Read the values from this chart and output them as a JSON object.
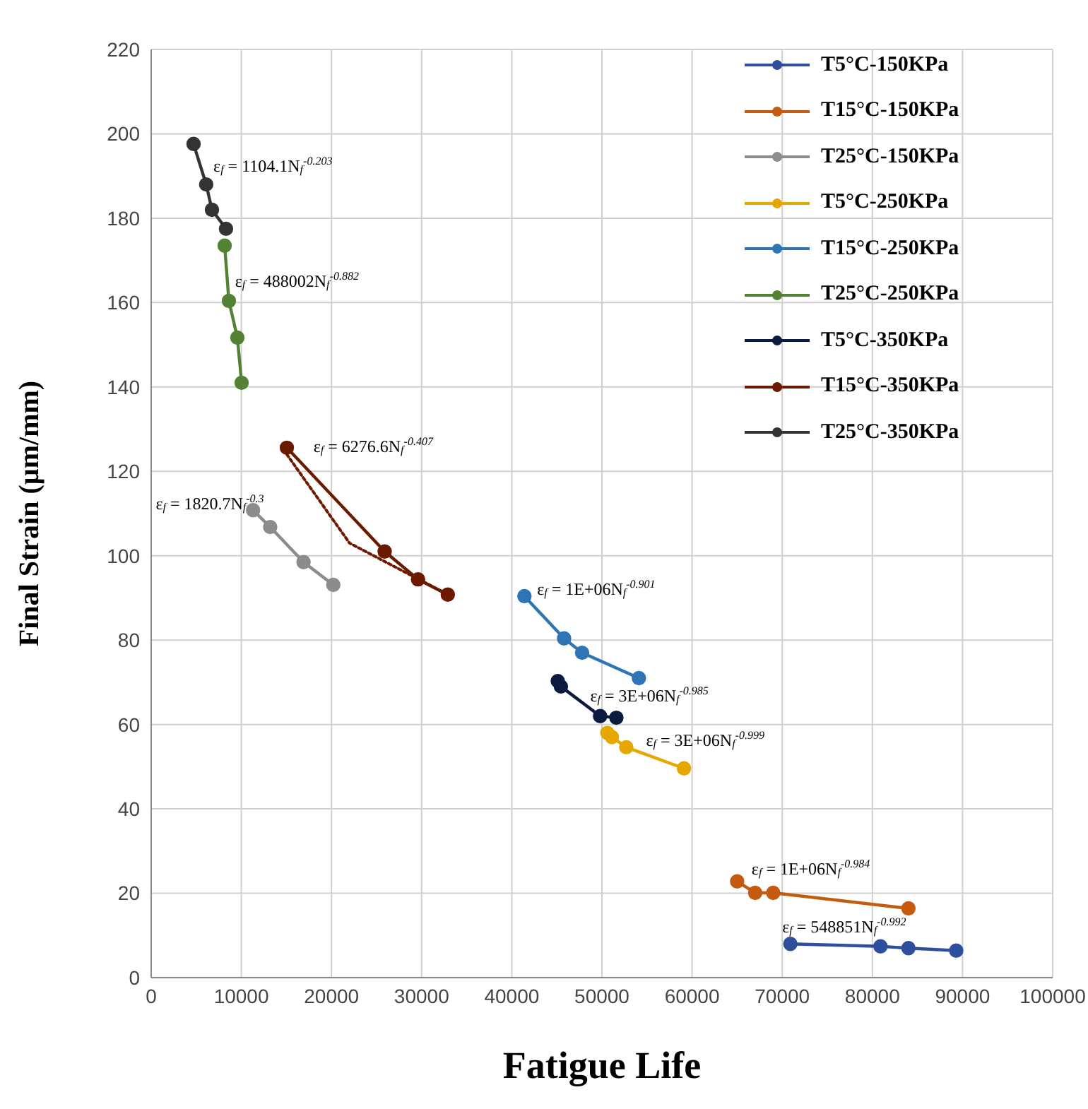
{
  "chart_data": {
    "type": "line",
    "xlabel": "Fatigue Life",
    "ylabel": "Final Strain (µm/mm)",
    "xlim": [
      0,
      100000
    ],
    "xticks": [
      0,
      10000,
      20000,
      30000,
      40000,
      50000,
      60000,
      70000,
      80000,
      90000,
      100000
    ],
    "ylim": [
      0,
      220
    ],
    "yticks": [
      0,
      20,
      40,
      60,
      80,
      100,
      120,
      140,
      160,
      180,
      200,
      220
    ],
    "grid": true,
    "legend": "top right",
    "marker": "circle",
    "line_style": "solid",
    "series": [
      {
        "name": "T5°C-150KPa",
        "color": "#2f4f9e",
        "x": [
          70900,
          80900,
          84000,
          89300
        ],
        "values": [
          8,
          7.4,
          7,
          6.4
        ]
      },
      {
        "name": "T15°C-150KPa",
        "color": "#c55a11",
        "x": [
          65000,
          67000,
          69000,
          84000
        ],
        "values": [
          22.8,
          20.1,
          20.1,
          16.4
        ]
      },
      {
        "name": "T25°C-150KPa",
        "color": "#8c8c8c",
        "x": [
          11300,
          13200,
          16900,
          20200
        ],
        "values": [
          110.8,
          106.8,
          98.5,
          93.1
        ]
      },
      {
        "name": "T5°C-250KPa",
        "color": "#e6a800",
        "x": [
          50600,
          51100,
          52700,
          59100
        ],
        "values": [
          58,
          57,
          54.6,
          49.6
        ]
      },
      {
        "name": "T15°C-250KPa",
        "color": "#2e75b6",
        "x": [
          41400,
          45800,
          47800,
          54100
        ],
        "values": [
          90.4,
          80.4,
          77,
          71
        ]
      },
      {
        "name": "T25°C-250KPa",
        "color": "#548235",
        "x": [
          8150,
          8620,
          9560,
          10030
        ],
        "values": [
          173.5,
          160.4,
          151.7,
          141
        ]
      },
      {
        "name": "T5°C-350KPa",
        "color": "#0d1a40",
        "x": [
          45100,
          45450,
          49800,
          51600
        ],
        "values": [
          70.3,
          69,
          62,
          61.6
        ]
      },
      {
        "name": "T15°C-350KPa",
        "color": "#6b1a00",
        "x": [
          15050,
          25900,
          29600,
          32900
        ],
        "values": [
          125.6,
          101,
          94.4,
          90.8
        ]
      },
      {
        "name": "T25°C-350KPa",
        "color": "#333333",
        "x": [
          4700,
          6100,
          6740,
          8300
        ],
        "values": [
          197.6,
          188,
          182,
          177.5
        ]
      },
      {
        "type": "line",
        "line_style": "dotted",
        "marker": "none",
        "color": "#6b1a00",
        "x": [
          15050,
          22000,
          32900
        ],
        "values": [
          124,
          103,
          90.8
        ]
      }
    ],
    "annotations": [
      "ε$_{f}$ = 1104.1N$_{f}$$^{-0.203}$",
      "ε$_{f}$  = 488002N$_{f}$$^{-0.882}$",
      "ε$_{f}$ = 6276.6N$_{f}$$^{-0.407}$",
      "ε$_{f}$ = 1820.7N$_{f}$$^{-0.3}$",
      "ε$_{f}$ = 1E+06N$_{f}$$^{-0.901}$",
      "ε$_{f}$ = 3E+06N$_{f}$$^{-0.985}$",
      "ε$_{f}$ = 3E+06N$_{f}$$^{-0.999}$",
      "ε$_{f}$ = 1E+06N$_{f}$$^{-0.984}$",
      "ε$_{f}$ = 548851N$_{f}$$^{-0.992}$"
    ]
  }
}
